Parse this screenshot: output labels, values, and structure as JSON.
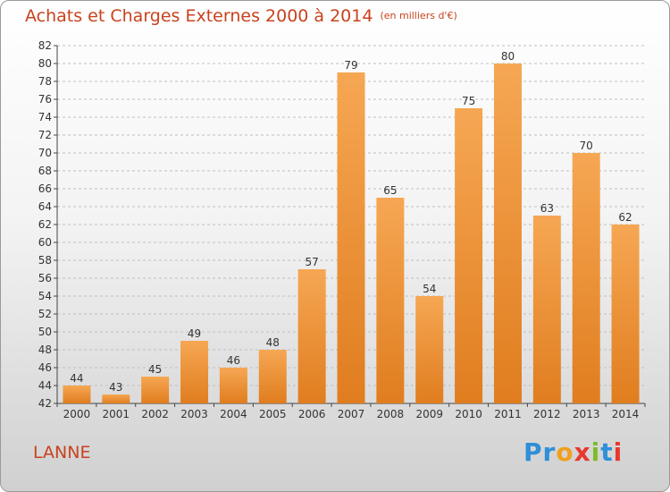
{
  "title": "Achats et Charges Externes 2000 à 2014",
  "unit_note": "(en milliers d'€)",
  "city": "LANNE",
  "logo": {
    "letters": [
      "P",
      "r",
      "o",
      "x",
      "i",
      "t",
      "i"
    ],
    "colors": [
      "#2f8fd8",
      "#2f8fd8",
      "#f0a020",
      "#e8382d",
      "#7cbc2c",
      "#2f8fd8",
      "#e8382d"
    ]
  },
  "colors": {
    "title": "#c8421d",
    "bar_light": "#f6a753",
    "bar_dark": "#e07d1f",
    "axis": "#444444",
    "grid": "#bfbfbf"
  },
  "chart_data": {
    "type": "bar",
    "categories": [
      "2000",
      "2001",
      "2002",
      "2003",
      "2004",
      "2005",
      "2006",
      "2007",
      "2008",
      "2009",
      "2010",
      "2011",
      "2012",
      "2013",
      "2014"
    ],
    "values": [
      44,
      43,
      45,
      49,
      46,
      48,
      57,
      79,
      65,
      54,
      75,
      80,
      63,
      70,
      62
    ],
    "ylim": [
      42,
      82
    ],
    "yticks": [
      42,
      44,
      46,
      48,
      50,
      52,
      54,
      56,
      58,
      60,
      62,
      64,
      66,
      68,
      70,
      72,
      74,
      76,
      78,
      80,
      82
    ],
    "grid": true,
    "data_labels": true
  }
}
